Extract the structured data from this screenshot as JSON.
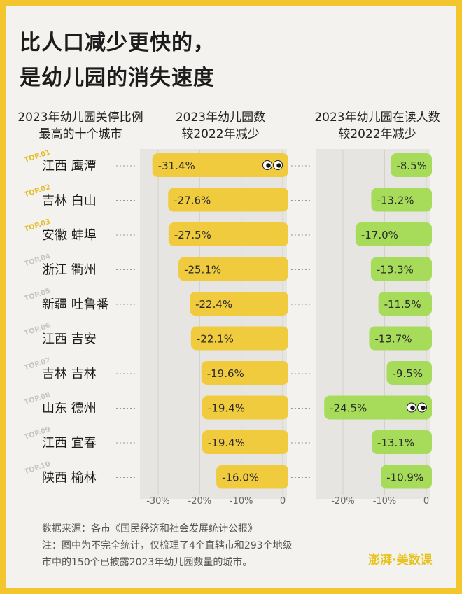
{
  "title_line1": "比人口减少更快的，",
  "title_line2": "是幼儿园的消失速度",
  "col1_header": [
    "2023年幼儿园关停比例",
    "最高的十个城市"
  ],
  "col2_header": [
    "2023年幼儿园数",
    "较2022年减少"
  ],
  "col3_header": [
    "2023年幼儿园在读人数",
    "较2022年减少"
  ],
  "colors": {
    "frame": "#f2c62c",
    "bar1": "#f1cb3e",
    "bar2": "#a6dc5a",
    "panel": "#e6e5e1",
    "text": "#1c1c1c"
  },
  "chart_data": [
    {
      "type": "bar",
      "orientation": "horizontal",
      "categories": [
        "江西 鹰潭",
        "吉林 白山",
        "安徽 蚌埠",
        "浙江 衢州",
        "新疆 吐鲁番",
        "江西 吉安",
        "吉林 吉林",
        "山东 德州",
        "江西 宜春",
        "陕西 榆林"
      ],
      "rank_labels": [
        "TOP.01",
        "TOP.02",
        "TOP.03",
        "TOP.04",
        "TOP.05",
        "TOP.06",
        "TOP.07",
        "TOP.08",
        "TOP.09",
        "TOP.10"
      ],
      "values": [
        -31.4,
        -27.6,
        -27.5,
        -25.1,
        -22.4,
        -22.1,
        -19.6,
        -19.4,
        -19.4,
        -16.0
      ],
      "value_labels": [
        "-31.4%",
        "-27.6%",
        "-27.5%",
        "-25.1%",
        "-22.4%",
        "-22.1%",
        "-19.6%",
        "-19.4%",
        "-19.4%",
        "-16.0%"
      ],
      "xlim": [
        -33,
        0
      ],
      "xticks": [
        -30,
        -20,
        -10,
        0
      ],
      "xtick_labels": [
        "-30%",
        "-20%",
        "-10%",
        "0"
      ]
    },
    {
      "type": "bar",
      "orientation": "horizontal",
      "categories": [
        "江西 鹰潭",
        "吉林 白山",
        "安徽 蚌埠",
        "浙江 衢州",
        "新疆 吐鲁番",
        "江西 吉安",
        "吉林 吉林",
        "山东 德州",
        "江西 宜春",
        "陕西 榆林"
      ],
      "values": [
        -8.5,
        -13.2,
        -17.0,
        -13.3,
        -11.5,
        -13.7,
        -9.5,
        -24.5,
        -13.1,
        -10.9
      ],
      "value_labels": [
        "-8.5%",
        "-13.2%",
        "-17.0%",
        "-13.3%",
        "-11.5%",
        "-13.7%",
        "-9.5%",
        "-24.5%",
        "-13.1%",
        "-10.9%"
      ],
      "xlim": [
        -25,
        0
      ],
      "xticks": [
        -20,
        -10,
        0
      ],
      "xtick_labels": [
        "-20%",
        "-10%",
        "0"
      ]
    }
  ],
  "notes": {
    "source": "数据来源：各市《国民经济和社会发展统计公报》",
    "note_line1": "注：图中为不完全统计，仅梳理了4个直辖市和293个地级",
    "note_line2": "市中的150个已披露2023年幼儿园数量的城市。"
  },
  "logo": "澎湃·美数课"
}
